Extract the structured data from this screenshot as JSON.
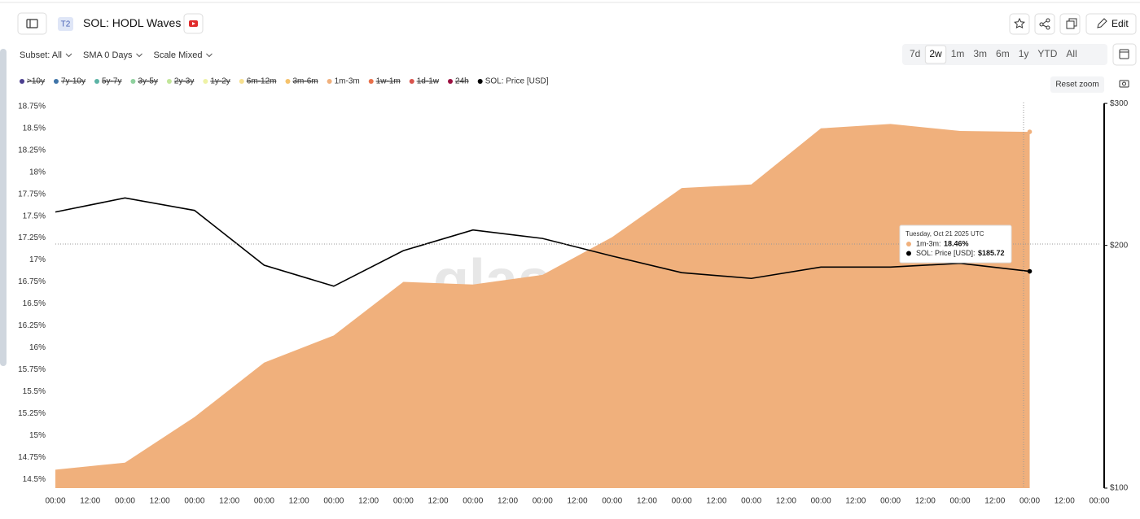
{
  "chart_data": {
    "type": "area",
    "title": "SOL: HODL Waves",
    "categories": [
      "00:00",
      "00:00",
      "00:00",
      "00:00",
      "00:00",
      "00:00",
      "00:00",
      "00:00",
      "00:00",
      "00:00",
      "00:00",
      "00:00",
      "00:00",
      "00:00",
      "00:00",
      "00:00"
    ],
    "half_day_labels": [
      "12:00",
      "12:00",
      "12:00",
      "12:00",
      "12:00",
      "12:00",
      "12:00",
      "12:00",
      "12:00",
      "12:00",
      "12:00",
      "12:00",
      "12:00",
      "12:00",
      "12:00"
    ],
    "series": [
      {
        "name": "1m-3m",
        "color": "#f0b07c",
        "type": "area",
        "values": [
          14.61,
          14.69,
          15.21,
          15.83,
          16.14,
          16.75,
          16.72,
          16.83,
          17.26,
          17.82,
          17.86,
          18.5,
          18.55,
          18.47,
          18.46,
          null
        ],
        "value_labels": [
          null,
          null,
          null,
          null,
          null,
          null,
          null,
          null,
          null,
          null,
          null,
          null,
          null,
          null,
          "18.46%",
          null
        ]
      },
      {
        "name": "SOL: Price [USD]",
        "color": "#000000",
        "type": "line",
        "axis": "y2",
        "values": [
          220,
          229,
          221,
          189,
          178,
          197,
          209,
          204,
          194,
          185,
          182,
          188,
          188,
          190,
          185.72,
          null
        ],
        "value_labels": [
          null,
          null,
          null,
          null,
          null,
          null,
          null,
          null,
          null,
          null,
          null,
          null,
          null,
          null,
          "$185.72",
          null
        ]
      }
    ],
    "legend_before": [
      {
        "name": ">10y",
        "color": "#4b3f8f"
      },
      {
        "name": "7y-10y",
        "color": "#3f74a8"
      },
      {
        "name": "5y-7y",
        "color": "#5bb3a5"
      },
      {
        "name": "3y-5y",
        "color": "#8fd19e"
      },
      {
        "name": "2y-3y",
        "color": "#c2e69a"
      },
      {
        "name": "1y-2y",
        "color": "#eef2a6"
      },
      {
        "name": "6m-12m",
        "color": "#f7e08f"
      },
      {
        "name": "3m-6m",
        "color": "#f5c26b"
      }
    ],
    "legend_after": [
      {
        "name": "1w-1m",
        "color": "#e8704a"
      },
      {
        "name": "1d-1w",
        "color": "#d9544d"
      },
      {
        "name": "24h",
        "color": "#9b1040"
      }
    ],
    "ylim": [
      14.4,
      18.85
    ],
    "yticks": [
      {
        "value": 14.5,
        "label": "14.5%"
      },
      {
        "value": 14.75,
        "label": "14.75%"
      },
      {
        "value": 15,
        "label": "15%"
      },
      {
        "value": 15.25,
        "label": "15.25%"
      },
      {
        "value": 15.5,
        "label": "15.5%"
      },
      {
        "value": 15.75,
        "label": "15.75%"
      },
      {
        "value": 16,
        "label": "16%"
      },
      {
        "value": 16.25,
        "label": "16.25%"
      },
      {
        "value": 16.5,
        "label": "16.5%"
      },
      {
        "value": 16.75,
        "label": "16.75%"
      },
      {
        "value": 17,
        "label": "17%"
      },
      {
        "value": 17.25,
        "label": "17.25%"
      },
      {
        "value": 17.5,
        "label": "17.5%"
      },
      {
        "value": 17.75,
        "label": "17.75%"
      },
      {
        "value": 18,
        "label": "18%"
      },
      {
        "value": 18.25,
        "label": "18.25%"
      },
      {
        "value": 18.5,
        "label": "18.5%"
      },
      {
        "value": 18.75,
        "label": "18.75%"
      }
    ],
    "y2lim": [
      100,
      305
    ],
    "y2ticks": [
      {
        "value": 100,
        "label": "$100"
      },
      {
        "value": 200,
        "label": "$200"
      },
      {
        "value": 300,
        "label": "$300"
      }
    ],
    "y2_log": true,
    "tooltip_title": "Tuesday, Oct 21 2025 UTC",
    "watermark": "glassnode"
  },
  "ui": {
    "badge": "T2",
    "edit": "Edit",
    "filters": [
      "Subset: All",
      "SMA 0 Days",
      "Scale Mixed"
    ],
    "ranges": [
      "7d",
      "2w",
      "1m",
      "3m",
      "6m",
      "1y",
      "YTD",
      "All"
    ],
    "active_range": "2w",
    "reset_zoom": "Reset zoom"
  }
}
